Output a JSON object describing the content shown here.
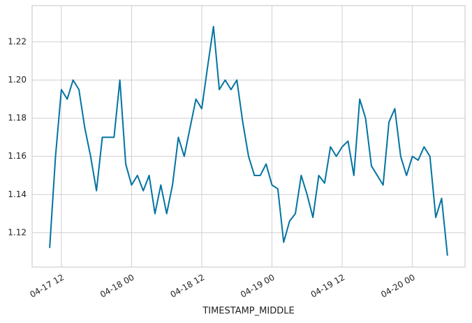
{
  "chart_data": {
    "type": "line",
    "xlabel": "TIMESTAMP_MIDDLE",
    "x": [
      "04-17 10",
      "04-17 11",
      "04-17 12",
      "04-17 13",
      "04-17 14",
      "04-17 15",
      "04-17 16",
      "04-17 17",
      "04-17 18",
      "04-17 19",
      "04-17 20",
      "04-17 21",
      "04-17 22",
      "04-17 23",
      "04-18 00",
      "04-18 01",
      "04-18 02",
      "04-18 03",
      "04-18 04",
      "04-18 05",
      "04-18 06",
      "04-18 07",
      "04-18 08",
      "04-18 09",
      "04-18 10",
      "04-18 11",
      "04-18 12",
      "04-18 13",
      "04-18 14",
      "04-18 15",
      "04-18 16",
      "04-18 17",
      "04-18 18",
      "04-18 19",
      "04-18 20",
      "04-18 21",
      "04-18 22",
      "04-18 23",
      "04-19 00",
      "04-19 01",
      "04-19 02",
      "04-19 03",
      "04-19 04",
      "04-19 05",
      "04-19 06",
      "04-19 07",
      "04-19 08",
      "04-19 09",
      "04-19 10",
      "04-19 11",
      "04-19 12",
      "04-19 13",
      "04-19 14",
      "04-19 15",
      "04-19 16",
      "04-19 17",
      "04-19 18",
      "04-19 19",
      "04-19 20",
      "04-19 21",
      "04-19 22",
      "04-19 23",
      "04-20 00",
      "04-20 01",
      "04-20 02",
      "04-20 03",
      "04-20 04",
      "04-20 05",
      "04-20 06"
    ],
    "series": [
      {
        "color": "#0173a2",
        "values": [
          1.112,
          1.16,
          1.195,
          1.19,
          1.2,
          1.195,
          1.175,
          1.16,
          1.142,
          1.17,
          1.17,
          1.17,
          1.2,
          1.156,
          1.145,
          1.15,
          1.142,
          1.15,
          1.13,
          1.145,
          1.13,
          1.145,
          1.17,
          1.16,
          1.175,
          1.19,
          1.185,
          1.207,
          1.228,
          1.195,
          1.2,
          1.195,
          1.2,
          1.178,
          1.16,
          1.15,
          1.15,
          1.156,
          1.145,
          1.143,
          1.115,
          1.126,
          1.13,
          1.15,
          1.14,
          1.128,
          1.15,
          1.146,
          1.165,
          1.16,
          1.165,
          1.168,
          1.15,
          1.19,
          1.18,
          1.155,
          1.15,
          1.145,
          1.178,
          1.185,
          1.16,
          1.15,
          1.16,
          1.158,
          1.165,
          1.16,
          1.128,
          1.138,
          1.108
        ]
      }
    ],
    "xlim": [
      "04-17 07",
      "04-20 09"
    ],
    "xticks": [
      "04-17 12",
      "04-18 00",
      "04-18 12",
      "04-19 00",
      "04-19 12",
      "04-20 00"
    ],
    "ylim": [
      1.102,
      1.239
    ],
    "yticks": [
      1.12,
      1.14,
      1.16,
      1.18,
      {
        "value": 1.2,
        "label": "1.20"
      },
      1.22
    ],
    "grid": true
  }
}
